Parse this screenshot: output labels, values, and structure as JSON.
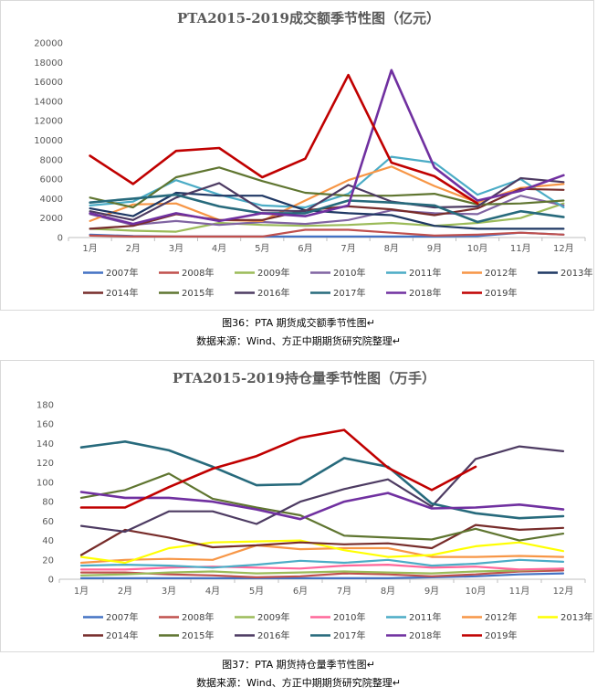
{
  "chart_data": [
    {
      "type": "line",
      "title": "PTA2015-2019成交额季节性图（亿元）",
      "xlabel": "",
      "ylabel": "",
      "categories": [
        "1月",
        "2月",
        "3月",
        "4月",
        "5月",
        "6月",
        "7月",
        "8月",
        "9月",
        "10月",
        "11月",
        "12月"
      ],
      "ylim": [
        0,
        20000
      ],
      "yticks": [
        0,
        2000,
        4000,
        6000,
        8000,
        10000,
        12000,
        14000,
        16000,
        18000,
        20000
      ],
      "series": [
        {
          "name": "2007年",
          "color": "#4472c4",
          "values": [
            300,
            150,
            100,
            100,
            100,
            100,
            100,
            100,
            100,
            150,
            500,
            300
          ]
        },
        {
          "name": "2008年",
          "color": "#c0504d",
          "values": [
            200,
            100,
            100,
            100,
            100,
            800,
            800,
            500,
            200,
            300,
            500,
            300
          ]
        },
        {
          "name": "2009年",
          "color": "#9bbb59",
          "values": [
            900,
            700,
            600,
            1500,
            1300,
            1200,
            1300,
            1500,
            1200,
            1500,
            2000,
            3500
          ]
        },
        {
          "name": "2010年",
          "color": "#8064a2",
          "values": [
            2400,
            1300,
            1700,
            1300,
            1600,
            1400,
            1800,
            2800,
            2500,
            2400,
            4300,
            3300
          ]
        },
        {
          "name": "2011年",
          "color": "#4bacc6",
          "values": [
            3300,
            3700,
            5900,
            4400,
            3300,
            3100,
            4500,
            8300,
            7700,
            4400,
            6000,
            3100
          ]
        },
        {
          "name": "2012年",
          "color": "#f79646",
          "values": [
            1700,
            3400,
            3500,
            1800,
            1700,
            3800,
            5900,
            7300,
            5300,
            3600,
            5100,
            5500
          ]
        },
        {
          "name": "2013年",
          "color": "#1f3864",
          "values": [
            3000,
            2200,
            4600,
            4300,
            4300,
            2800,
            2500,
            2300,
            1200,
            900,
            900,
            900
          ]
        },
        {
          "name": "2014年",
          "color": "#772c2a",
          "values": [
            900,
            1200,
            2400,
            1800,
            1800,
            2800,
            3200,
            2900,
            2300,
            3000,
            5000,
            4900
          ]
        },
        {
          "name": "2015年",
          "color": "#5f7530",
          "values": [
            4100,
            3100,
            6200,
            7200,
            5800,
            4600,
            4300,
            4300,
            4500,
            3400,
            3500,
            3800
          ]
        },
        {
          "name": "2016年",
          "color": "#4d3b62",
          "values": [
            2700,
            1800,
            4100,
            5600,
            2800,
            2700,
            5400,
            3700,
            3100,
            3200,
            6100,
            5700
          ]
        },
        {
          "name": "2017年",
          "color": "#276a7c",
          "values": [
            3600,
            4000,
            4400,
            3200,
            2500,
            2500,
            3800,
            3600,
            3300,
            1600,
            2700,
            2100
          ]
        },
        {
          "name": "2018年",
          "color": "#7030a0",
          "values": [
            2500,
            1400,
            2500,
            1700,
            2500,
            2200,
            3300,
            17200,
            7200,
            3800,
            4800,
            6400
          ]
        },
        {
          "name": "2019年",
          "color": "#c00000",
          "values": [
            8400,
            5500,
            8900,
            9200,
            6200,
            8100,
            16700,
            7700,
            6300,
            3500,
            null,
            null
          ]
        }
      ],
      "legend_rows": [
        [
          "2007年",
          "2008年",
          "2009年",
          "2010年",
          "2011年",
          "2012年",
          "2013年"
        ],
        [
          "2014年",
          "2015年",
          "2016年",
          "2017年",
          "2018年",
          "2019年"
        ]
      ]
    },
    {
      "type": "line",
      "title": "PTA2015-2019持仓量季节性图（万手）",
      "xlabel": "",
      "ylabel": "",
      "categories": [
        "1月",
        "2月",
        "3月",
        "4月",
        "5月",
        "6月",
        "7月",
        "8月",
        "9月",
        "10月",
        "11月",
        "12月"
      ],
      "ylim": [
        0,
        180
      ],
      "yticks": [
        0,
        20,
        40,
        60,
        80,
        100,
        120,
        140,
        160,
        180
      ],
      "series": [
        {
          "name": "2007年",
          "color": "#4472c4",
          "values": [
            1,
            1,
            1,
            1,
            1,
            1,
            1,
            1,
            2,
            3,
            5,
            6
          ]
        },
        {
          "name": "2008年",
          "color": "#c0504d",
          "values": [
            7,
            7,
            5,
            4,
            2,
            3,
            6,
            5,
            3,
            5,
            8,
            9
          ]
        },
        {
          "name": "2009年",
          "color": "#9bbb59",
          "values": [
            4,
            5,
            7,
            8,
            6,
            7,
            8,
            7,
            6,
            8,
            9,
            11
          ]
        },
        {
          "name": "2010年",
          "color": "#ff6699",
          "values": [
            10,
            10,
            12,
            13,
            12,
            11,
            14,
            15,
            12,
            13,
            10,
            11
          ]
        },
        {
          "name": "2011年",
          "color": "#4bacc6",
          "values": [
            14,
            15,
            14,
            12,
            15,
            19,
            17,
            20,
            14,
            16,
            20,
            18
          ]
        },
        {
          "name": "2012年",
          "color": "#f79646",
          "values": [
            17,
            20,
            21,
            20,
            35,
            31,
            32,
            32,
            23,
            23,
            24,
            23
          ]
        },
        {
          "name": "2013年",
          "color": "#ffff00",
          "values": [
            23,
            17,
            32,
            38,
            39,
            40,
            30,
            23,
            25,
            34,
            38,
            29
          ]
        },
        {
          "name": "2014年",
          "color": "#772c2a",
          "values": [
            25,
            51,
            43,
            33,
            35,
            38,
            36,
            37,
            32,
            56,
            51,
            53
          ]
        },
        {
          "name": "2015年",
          "color": "#5f7530",
          "values": [
            84,
            92,
            109,
            83,
            74,
            66,
            45,
            43,
            41,
            52,
            40,
            47
          ]
        },
        {
          "name": "2016年",
          "color": "#4d3b62",
          "values": [
            55,
            49,
            70,
            70,
            57,
            80,
            93,
            103,
            75,
            124,
            137,
            132
          ]
        },
        {
          "name": "2017年",
          "color": "#276a7c",
          "values": [
            136,
            142,
            133,
            116,
            97,
            98,
            125,
            116,
            78,
            68,
            63,
            65
          ]
        },
        {
          "name": "2018年",
          "color": "#7030a0",
          "values": [
            90,
            84,
            84,
            80,
            72,
            62,
            80,
            89,
            73,
            74,
            77,
            72
          ]
        },
        {
          "name": "2019年",
          "color": "#c00000",
          "values": [
            74,
            74,
            95,
            114,
            127,
            146,
            154,
            115,
            92,
            116,
            null,
            null
          ]
        }
      ],
      "legend_rows": [
        [
          "2007年",
          "2008年",
          "2009年",
          "2010年",
          "2011年",
          "2012年",
          "2013年"
        ],
        [
          "2014年",
          "2015年",
          "2016年",
          "2017年",
          "2018年",
          "2019年"
        ]
      ]
    }
  ],
  "captions": [
    {
      "figure": "图36：PTA 期货成交额季节性图↵",
      "source": "数据来源：Wind、方正中期期货研究院整理↵"
    },
    {
      "figure": "图37：PTA 期货持仓量季节性图↵",
      "source": "数据来源：Wind、方正中期期货研究院整理↵"
    }
  ]
}
